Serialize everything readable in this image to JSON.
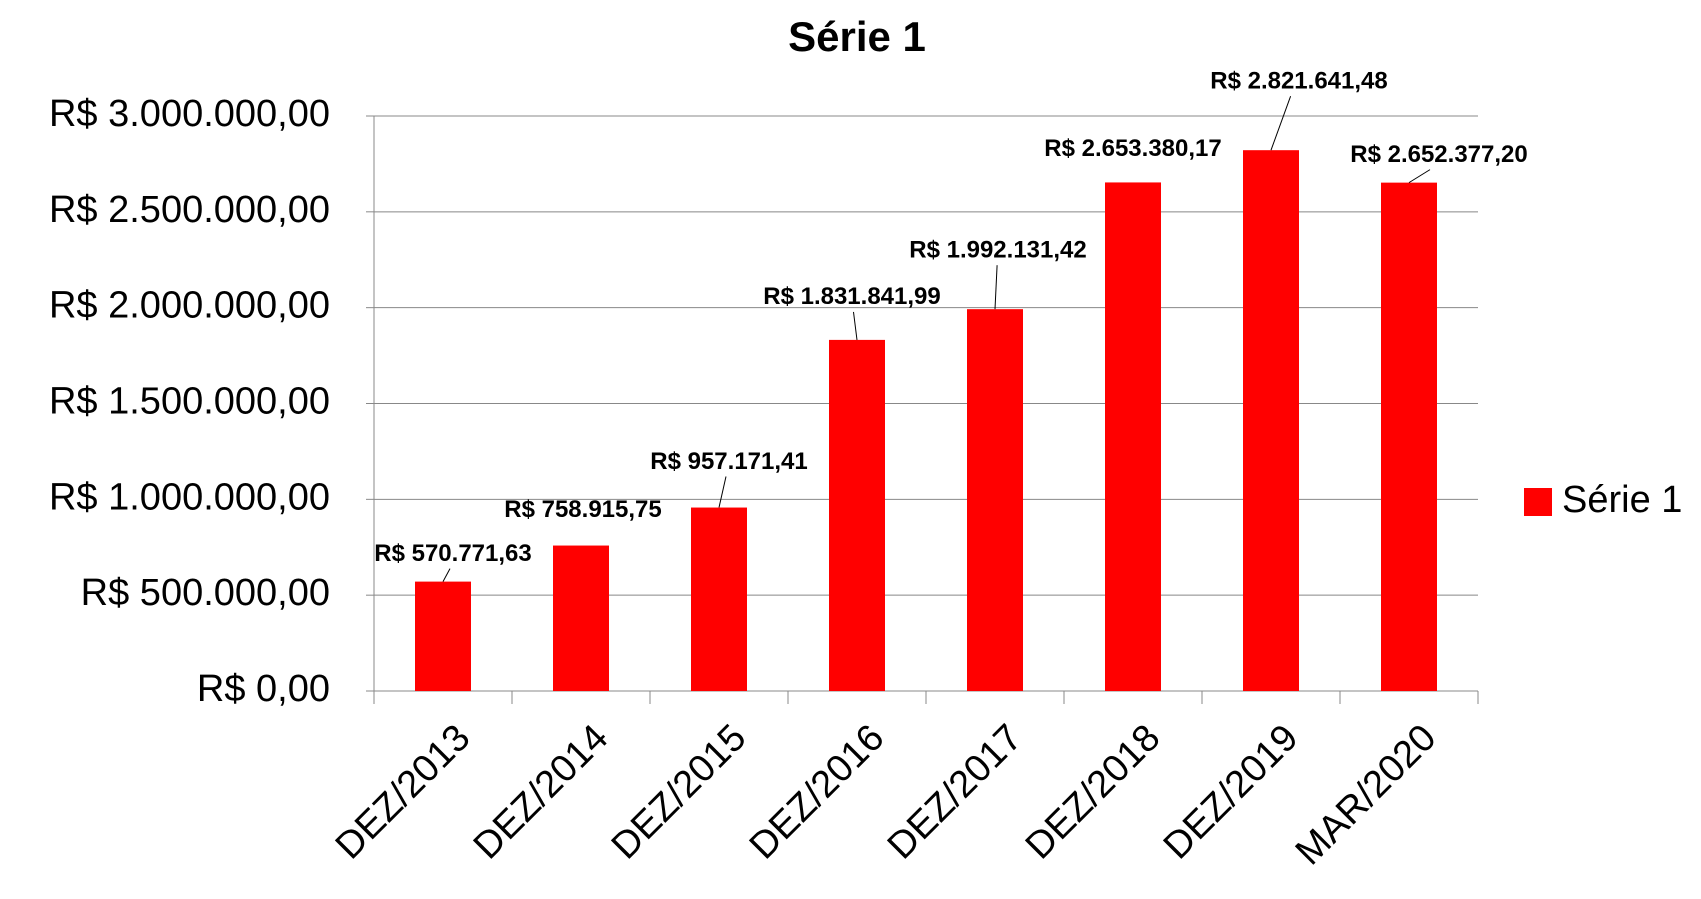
{
  "chart_data": {
    "type": "bar",
    "title": "Série 1",
    "categories": [
      "DEZ/2013",
      "DEZ/2014",
      "DEZ/2015",
      "DEZ/2016",
      "DEZ/2017",
      "DEZ/2018",
      "DEZ/2019",
      "MAR/2020"
    ],
    "series": [
      {
        "name": "Série 1",
        "color": "#ff0000",
        "values": [
          570771.63,
          758915.75,
          957171.41,
          1831841.99,
          1992131.42,
          2653380.17,
          2821641.48,
          2652377.2
        ],
        "value_labels": [
          "R$ 570.771,63",
          "R$ 758.915,75",
          "R$ 957.171,41",
          "R$ 1.831.841,99",
          "R$ 1.992.131,42",
          "R$ 2.653.380,17",
          "R$ 2.821.641,48",
          "R$ 2.652.377,20"
        ]
      }
    ],
    "ylim": [
      0,
      3000000
    ],
    "yticks": [
      {
        "value": 0,
        "label": "R$ 0,00"
      },
      {
        "value": 500000,
        "label": "R$ 500.000,00"
      },
      {
        "value": 1000000,
        "label": "R$ 1.000.000,00"
      },
      {
        "value": 1500000,
        "label": "R$ 1.500.000,00"
      },
      {
        "value": 2000000,
        "label": "R$ 2.000.000,00"
      },
      {
        "value": 2500000,
        "label": "R$ 2.500.000,00"
      },
      {
        "value": 3000000,
        "label": "R$ 3.000.000,00"
      }
    ],
    "grid": true,
    "legend": "right"
  }
}
